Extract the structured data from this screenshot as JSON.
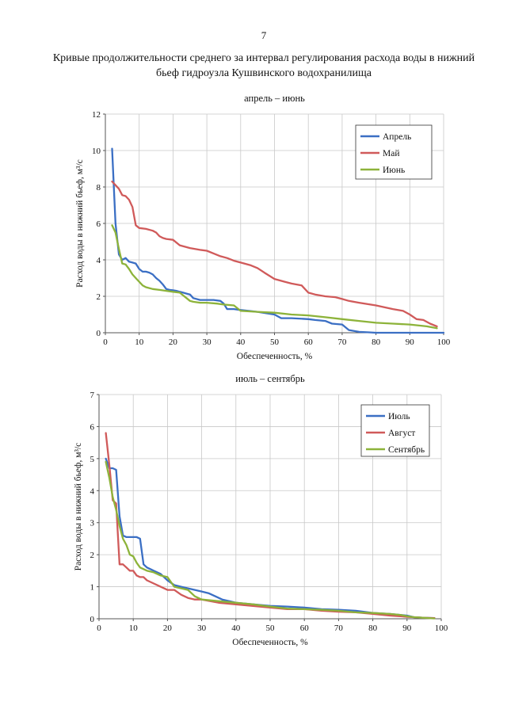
{
  "page_number": "7",
  "title_line1": "Кривые продолжительности среднего за интервал регулирования расхода воды в нижний",
  "title_line2": "бьеф гидроузла Кушвинского водохранилища",
  "chart_data": [
    {
      "type": "line",
      "title": "апрель – июнь",
      "xlabel": "Обеспеченность, %",
      "ylabel": "Расход воды в нижний бьеф, м³/с",
      "xlim": [
        0,
        100
      ],
      "ylim": [
        0,
        12
      ],
      "xticks": [
        0,
        10,
        20,
        30,
        40,
        50,
        60,
        70,
        80,
        90,
        100
      ],
      "yticks": [
        0,
        2,
        4,
        6,
        8,
        10,
        12
      ],
      "grid": true,
      "legend": "top-right",
      "series": [
        {
          "name": "Апрель",
          "color": "#3b6fc4",
          "x": [
            2,
            3,
            4,
            5,
            6,
            7,
            8,
            9,
            10,
            11,
            12,
            13,
            14,
            15,
            16,
            17,
            18,
            19,
            20,
            21,
            22,
            23,
            24,
            25,
            26,
            28,
            30,
            32,
            34,
            35,
            36,
            38,
            40,
            45,
            50,
            52,
            55,
            60,
            62,
            65,
            67,
            70,
            72,
            75,
            78,
            80,
            90,
            100
          ],
          "y": [
            10.1,
            6.0,
            4.3,
            4.0,
            4.1,
            3.9,
            3.85,
            3.8,
            3.5,
            3.35,
            3.35,
            3.3,
            3.2,
            3.0,
            2.85,
            2.65,
            2.4,
            2.35,
            2.33,
            2.3,
            2.25,
            2.2,
            2.15,
            2.1,
            1.9,
            1.8,
            1.8,
            1.8,
            1.75,
            1.6,
            1.3,
            1.3,
            1.25,
            1.15,
            1.0,
            0.8,
            0.8,
            0.75,
            0.7,
            0.65,
            0.5,
            0.45,
            0.15,
            0.05,
            0.02,
            0.0,
            0.0,
            0.0
          ]
        },
        {
          "name": "Май",
          "color": "#d05a5a",
          "x": [
            2,
            3,
            4,
            5,
            6,
            7,
            8,
            9,
            10,
            12,
            14,
            15,
            16,
            17,
            18,
            20,
            22,
            25,
            28,
            30,
            32,
            34,
            36,
            38,
            40,
            43,
            45,
            47,
            50,
            53,
            55,
            58,
            60,
            62,
            65,
            68,
            70,
            72,
            75,
            80,
            85,
            88,
            90,
            92,
            94,
            96,
            98
          ],
          "y": [
            8.3,
            8.1,
            7.9,
            7.55,
            7.5,
            7.3,
            6.9,
            5.9,
            5.75,
            5.7,
            5.6,
            5.5,
            5.3,
            5.2,
            5.15,
            5.1,
            4.8,
            4.65,
            4.55,
            4.5,
            4.35,
            4.2,
            4.1,
            3.95,
            3.85,
            3.7,
            3.55,
            3.3,
            2.95,
            2.8,
            2.7,
            2.6,
            2.2,
            2.1,
            2.0,
            1.95,
            1.85,
            1.75,
            1.65,
            1.5,
            1.3,
            1.2,
            1.0,
            0.75,
            0.7,
            0.5,
            0.35
          ]
        },
        {
          "name": "Июнь",
          "color": "#8db33a",
          "x": [
            2,
            3,
            4,
            5,
            6,
            7,
            8,
            9,
            10,
            11,
            12,
            14,
            16,
            18,
            20,
            22,
            24,
            25,
            26,
            28,
            30,
            33,
            35,
            38,
            40,
            45,
            50,
            55,
            60,
            65,
            70,
            75,
            80,
            85,
            90,
            95,
            98
          ],
          "y": [
            5.9,
            5.5,
            4.6,
            3.8,
            3.75,
            3.5,
            3.2,
            3.0,
            2.8,
            2.6,
            2.5,
            2.4,
            2.35,
            2.3,
            2.25,
            2.2,
            1.9,
            1.75,
            1.7,
            1.65,
            1.65,
            1.6,
            1.55,
            1.5,
            1.2,
            1.15,
            1.1,
            1.0,
            0.95,
            0.85,
            0.75,
            0.65,
            0.55,
            0.5,
            0.45,
            0.35,
            0.25
          ]
        }
      ]
    },
    {
      "type": "line",
      "title": "июль – сентябрь",
      "xlabel": "Обеспеченность, %",
      "ylabel": "Расход воды в нижний бьеф, м³/с",
      "xlim": [
        0,
        100
      ],
      "ylim": [
        0,
        7
      ],
      "xticks": [
        0,
        10,
        20,
        30,
        40,
        50,
        60,
        70,
        80,
        90,
        100
      ],
      "yticks": [
        0,
        1,
        2,
        3,
        4,
        5,
        6,
        7
      ],
      "grid": true,
      "legend": "top-right",
      "series": [
        {
          "name": "Июль",
          "color": "#3b6fc4",
          "x": [
            2,
            3,
            4,
            5,
            6,
            7,
            8,
            9,
            10,
            11,
            12,
            13,
            14,
            15,
            16,
            18,
            20,
            22,
            24,
            26,
            28,
            30,
            32,
            34,
            36,
            38,
            40,
            45,
            50,
            55,
            60,
            65,
            70,
            75,
            80,
            85,
            88,
            90,
            92,
            95,
            98
          ],
          "y": [
            5.0,
            4.7,
            4.7,
            4.65,
            3.2,
            2.6,
            2.55,
            2.55,
            2.55,
            2.55,
            2.5,
            1.7,
            1.6,
            1.55,
            1.5,
            1.4,
            1.2,
            1.05,
            1.0,
            0.95,
            0.9,
            0.85,
            0.8,
            0.7,
            0.6,
            0.55,
            0.5,
            0.45,
            0.4,
            0.38,
            0.35,
            0.3,
            0.28,
            0.25,
            0.18,
            0.15,
            0.12,
            0.1,
            0.05,
            0.03,
            0.02
          ]
        },
        {
          "name": "Август",
          "color": "#d05a5a",
          "x": [
            2,
            3,
            4,
            5,
            6,
            7,
            8,
            9,
            10,
            11,
            12,
            13,
            14,
            15,
            16,
            18,
            20,
            22,
            24,
            26,
            28,
            30,
            35,
            40,
            45,
            50,
            55,
            60,
            65,
            70,
            75,
            80,
            85,
            88,
            90,
            92,
            95,
            98
          ],
          "y": [
            5.8,
            4.8,
            3.7,
            3.6,
            1.7,
            1.7,
            1.6,
            1.5,
            1.5,
            1.35,
            1.3,
            1.3,
            1.2,
            1.15,
            1.1,
            1.0,
            0.9,
            0.9,
            0.75,
            0.65,
            0.6,
            0.6,
            0.5,
            0.45,
            0.4,
            0.35,
            0.3,
            0.3,
            0.25,
            0.22,
            0.2,
            0.15,
            0.1,
            0.08,
            0.06,
            0.05,
            0.03,
            0.02
          ]
        },
        {
          "name": "Сентябрь",
          "color": "#8db33a",
          "x": [
            2,
            3,
            4,
            5,
            6,
            7,
            8,
            9,
            10,
            11,
            12,
            13,
            14,
            16,
            18,
            20,
            22,
            24,
            26,
            28,
            30,
            35,
            40,
            45,
            50,
            55,
            60,
            65,
            70,
            75,
            80,
            85,
            88,
            90,
            92,
            95,
            98
          ],
          "y": [
            4.9,
            4.4,
            3.8,
            3.4,
            2.9,
            2.5,
            2.3,
            2.0,
            1.95,
            1.75,
            1.6,
            1.55,
            1.5,
            1.45,
            1.35,
            1.3,
            1.0,
            0.95,
            0.9,
            0.7,
            0.6,
            0.55,
            0.5,
            0.45,
            0.38,
            0.32,
            0.3,
            0.28,
            0.25,
            0.2,
            0.18,
            0.15,
            0.12,
            0.08,
            0.05,
            0.03,
            0.01
          ]
        }
      ]
    }
  ]
}
